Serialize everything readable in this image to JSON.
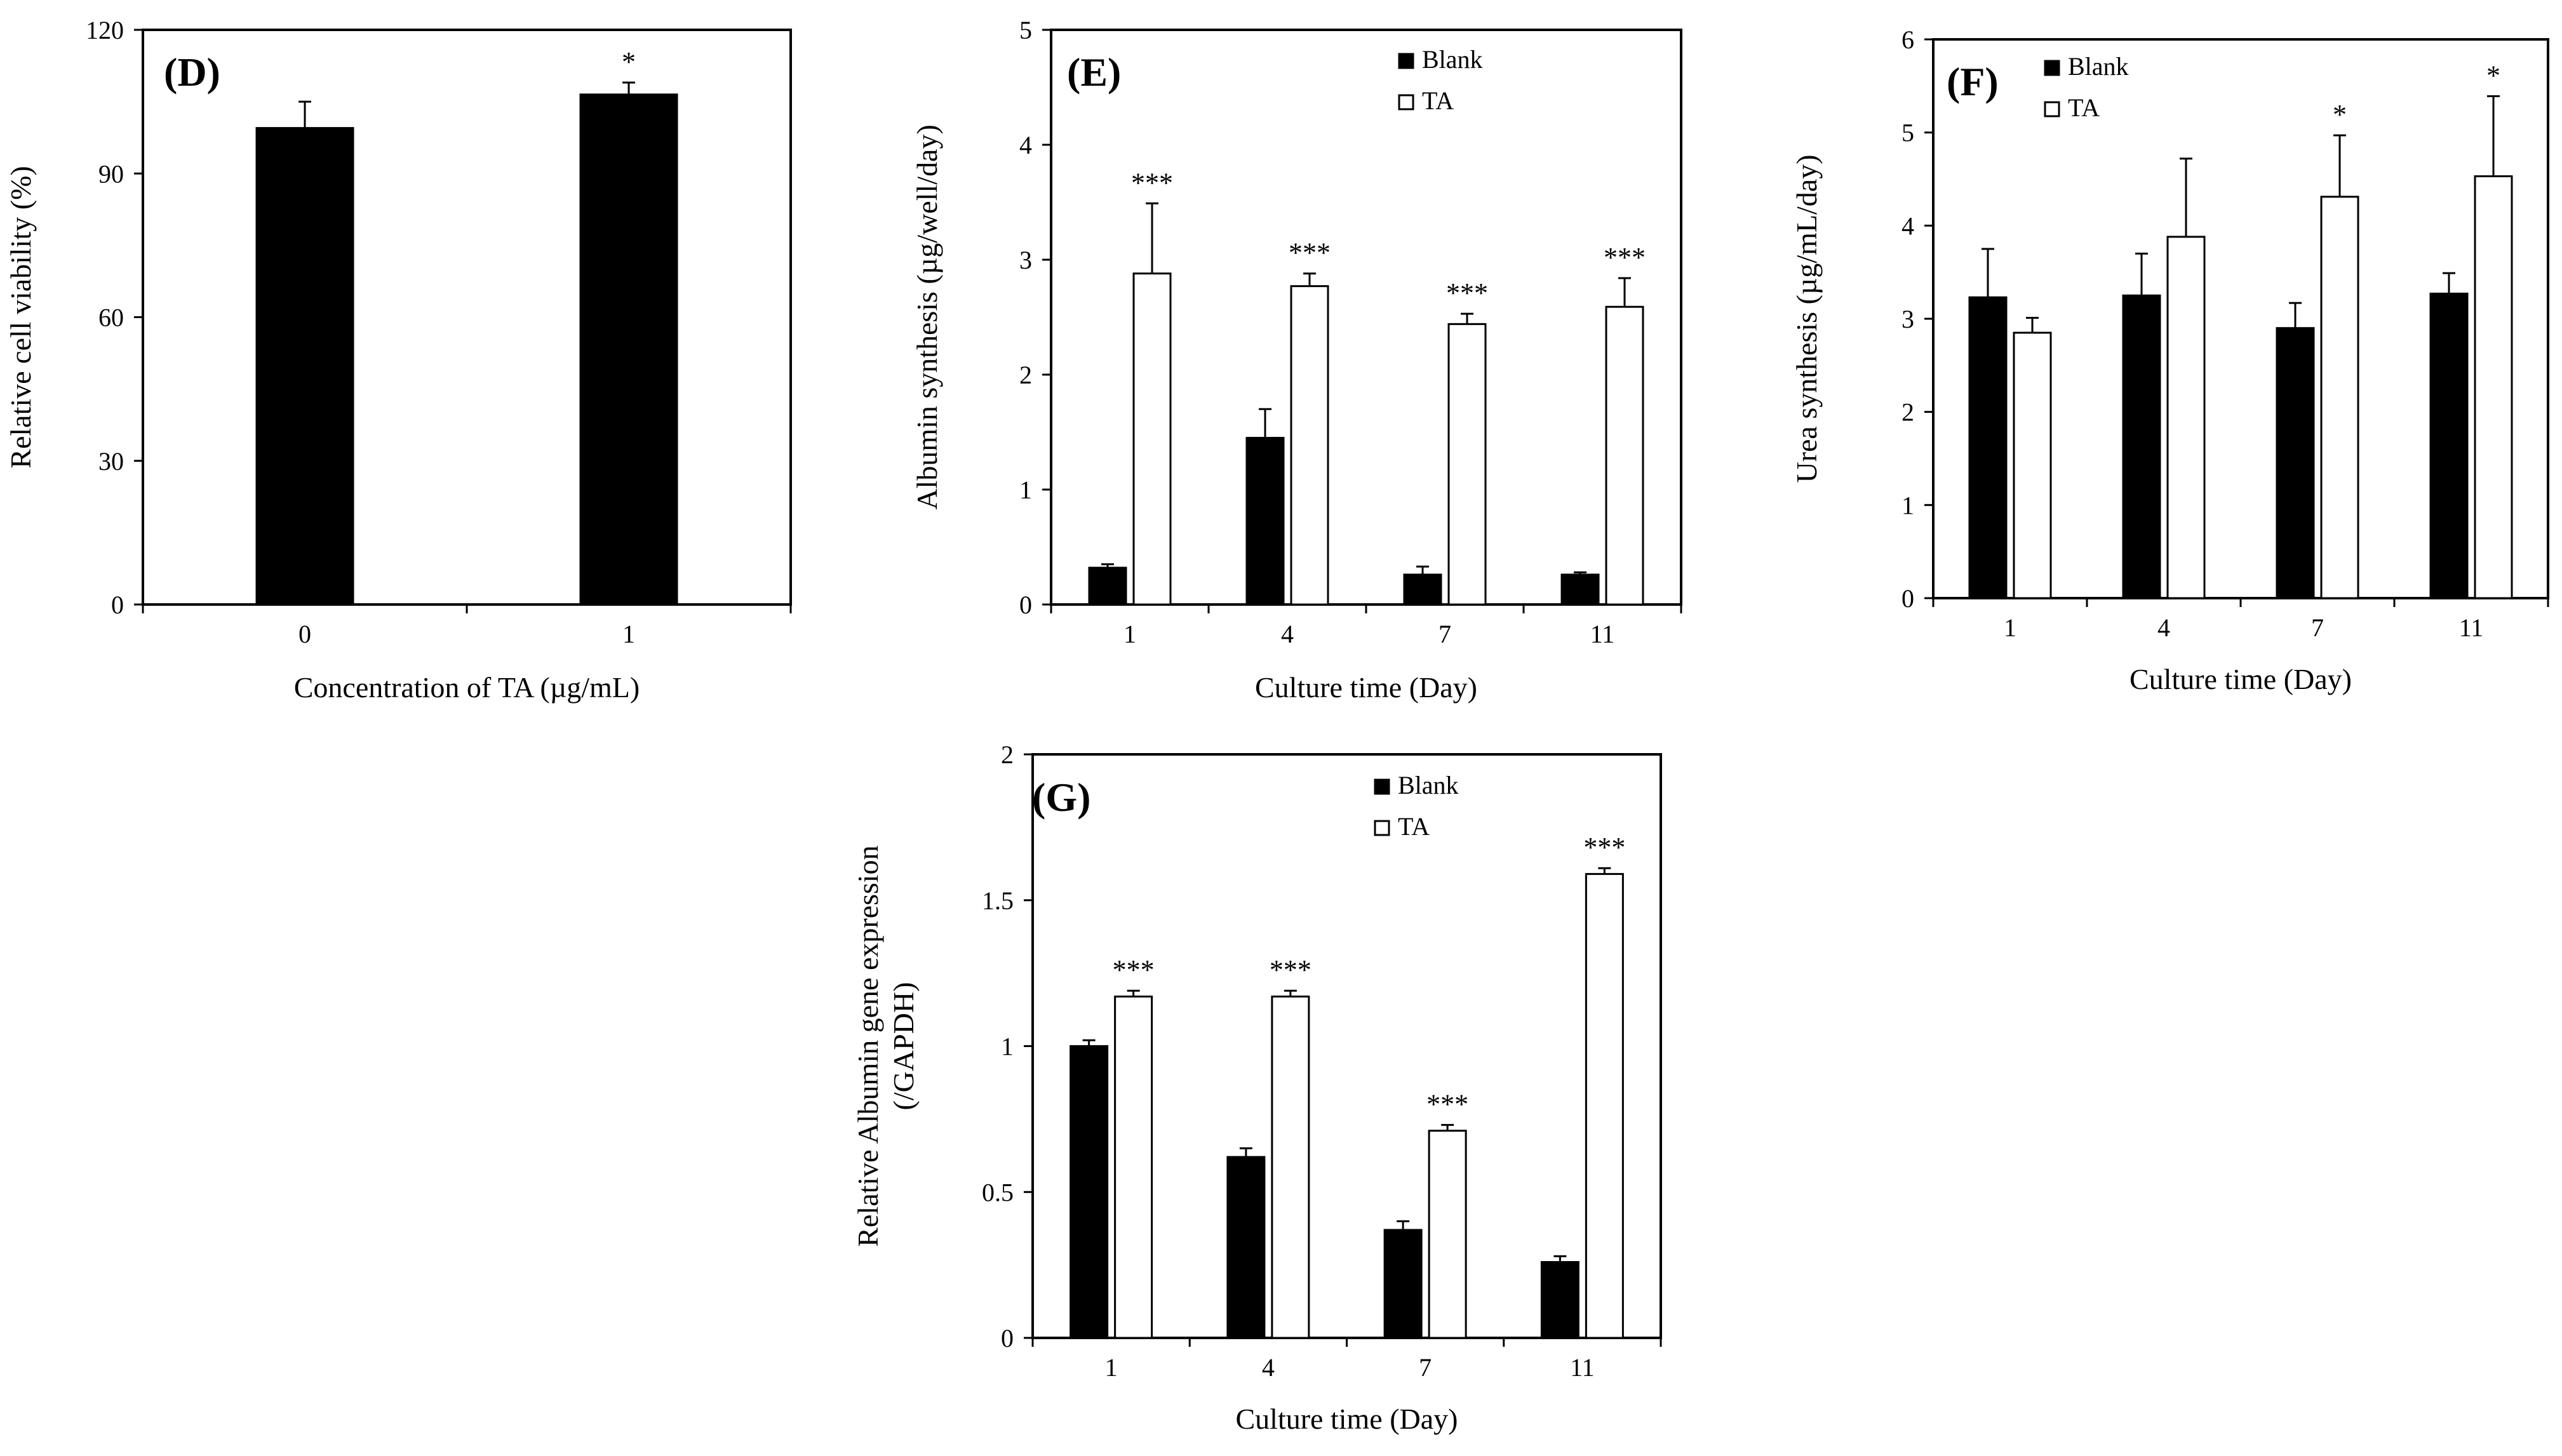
{
  "chart_data": [
    {
      "panel": "(D)",
      "type": "bar",
      "categories": [
        "0",
        "1"
      ],
      "series": [
        {
          "name": "Relative cell viability",
          "color": "#000000",
          "values": [
            99.5,
            106.5
          ],
          "errors": [
            5.5,
            2.5
          ],
          "significance": [
            "",
            "*"
          ]
        }
      ],
      "xlabel": "Concentration of TA (µg/mL)",
      "ylabel": [
        "Relative  cell  viability  (%)"
      ],
      "ylim": [
        0,
        120
      ],
      "yticks": [
        "0",
        "30",
        "60",
        "90",
        "120"
      ],
      "legend": []
    },
    {
      "panel": "(E)",
      "type": "bar",
      "categories": [
        "1",
        "4",
        "7",
        "11"
      ],
      "series": [
        {
          "name": "Blank",
          "color": "#000000",
          "values": [
            0.32,
            1.45,
            0.26,
            0.26
          ],
          "errors": [
            0.03,
            0.25,
            0.07,
            0.02
          ],
          "significance": [
            "",
            "",
            "",
            ""
          ]
        },
        {
          "name": "TA",
          "color": "#ffffff",
          "values": [
            2.88,
            2.77,
            2.44,
            2.59
          ],
          "errors": [
            0.61,
            0.11,
            0.09,
            0.25
          ],
          "significance": [
            "***",
            "***",
            "***",
            "***"
          ]
        }
      ],
      "xlabel": "Culture time (Day)",
      "ylabel": [
        "Albumin  synthesis  (µg/well/day)"
      ],
      "ylim": [
        0,
        5
      ],
      "yticks": [
        "0",
        "1",
        "2",
        "3",
        "4",
        "5"
      ],
      "legend": [
        "Blank",
        "TA"
      ]
    },
    {
      "panel": "(F)",
      "type": "bar",
      "categories": [
        "1",
        "4",
        "7",
        "11"
      ],
      "series": [
        {
          "name": "Blank",
          "color": "#000000",
          "values": [
            3.23,
            3.25,
            2.9,
            3.27
          ],
          "errors": [
            0.52,
            0.45,
            0.27,
            0.22
          ],
          "significance": [
            "",
            "",
            "",
            ""
          ]
        },
        {
          "name": "TA",
          "color": "#ffffff",
          "values": [
            2.85,
            3.88,
            4.31,
            4.53
          ],
          "errors": [
            0.16,
            0.84,
            0.66,
            0.86
          ],
          "significance": [
            "",
            "",
            "*",
            "*"
          ]
        }
      ],
      "xlabel": "Culture time (Day)",
      "ylabel": [
        "Urea  synthesis  (µg/mL/day)"
      ],
      "ylim": [
        0,
        6
      ],
      "yticks": [
        "0",
        "1",
        "2",
        "3",
        "4",
        "5",
        "6"
      ],
      "legend": [
        "Blank",
        "TA"
      ]
    },
    {
      "panel": "(G)",
      "type": "bar",
      "categories": [
        "1",
        "4",
        "7",
        "11"
      ],
      "series": [
        {
          "name": "Blank",
          "color": "#000000",
          "values": [
            1.0,
            0.62,
            0.37,
            0.26
          ],
          "errors": [
            0.02,
            0.03,
            0.03,
            0.02
          ],
          "significance": [
            "",
            "",
            "",
            ""
          ]
        },
        {
          "name": "TA",
          "color": "#ffffff",
          "values": [
            1.17,
            1.17,
            0.71,
            1.59
          ],
          "errors": [
            0.02,
            0.02,
            0.02,
            0.02
          ],
          "significance": [
            "***",
            "***",
            "***",
            "***"
          ]
        }
      ],
      "xlabel": "Culture time (Day)",
      "ylabel": [
        "Relative  Albumin  gene  expression",
        "(/GAPDH)"
      ],
      "ylim": [
        0,
        2
      ],
      "yticks": [
        "0",
        "0.5",
        "1",
        "1.5",
        "2"
      ],
      "legend": [
        "Blank",
        "TA"
      ]
    }
  ]
}
